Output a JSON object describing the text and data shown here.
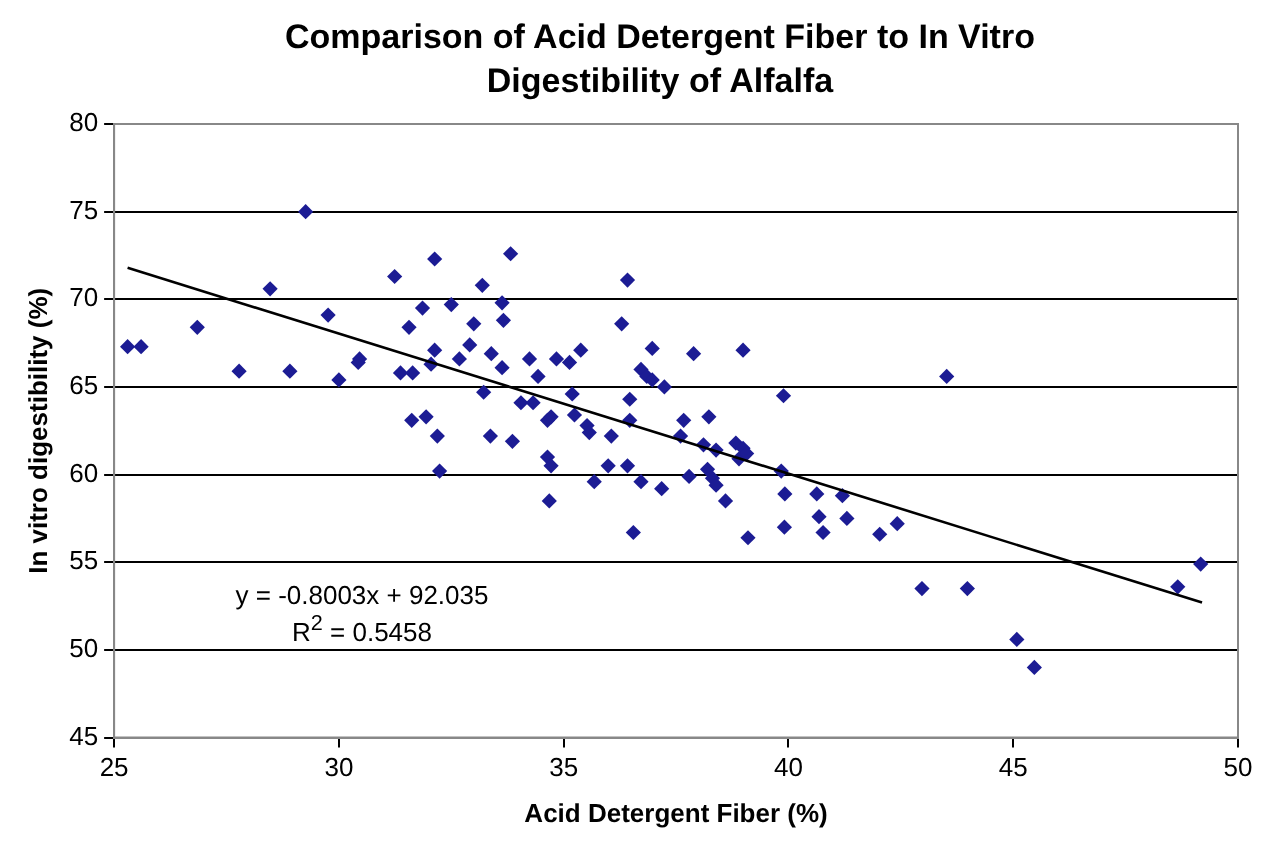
{
  "chart_data": {
    "type": "scatter",
    "title": "Comparison of Acid Detergent Fiber to In Vitro Digestibility of Alfalfa",
    "xlabel": "Acid Detergent Fiber (%)",
    "ylabel": "In vitro digestibility (%)",
    "annotations": [
      "y = -0.8003x + 92.035",
      "R$^{2}$ = 0.5458"
    ],
    "xlim": [
      25,
      50
    ],
    "xticks": [
      25,
      30,
      35,
      40,
      45,
      50
    ],
    "ylim": [
      45,
      80
    ],
    "yticks": [
      45,
      50,
      55,
      60,
      65,
      70,
      75,
      80
    ],
    "grid": "y",
    "legend": false,
    "marker": "diamond",
    "series": [
      {
        "type": "scatter",
        "color": "#1c1c94",
        "x": [
          25.3,
          25.6,
          26.85,
          27.78,
          28.47,
          28.91,
          29.26,
          29.76,
          30.0,
          30.43,
          30.46,
          31.24,
          31.37,
          31.64,
          31.56,
          31.62,
          31.94,
          31.86,
          32.13,
          32.13,
          32.05,
          32.19,
          32.24,
          32.5,
          32.68,
          32.91,
          33.0,
          33.19,
          33.22,
          33.39,
          33.37,
          33.63,
          33.66,
          33.82,
          33.63,
          33.86,
          34.05,
          34.24,
          34.32,
          34.43,
          34.64,
          34.72,
          34.64,
          34.72,
          34.68,
          34.84,
          35.13,
          35.38,
          35.19,
          35.24,
          35.52,
          35.57,
          35.68,
          35.99,
          36.06,
          36.29,
          36.42,
          36.42,
          36.47,
          36.47,
          36.55,
          36.72,
          36.85,
          36.97,
          36.72,
          36.97,
          37.18,
          37.24,
          37.67,
          37.6,
          37.79,
          37.89,
          38.23,
          38.11,
          38.2,
          38.31,
          38.39,
          38.39,
          38.6,
          38.83,
          38.9,
          38.99,
          39.07,
          38.99,
          39.1,
          39.89,
          39.84,
          39.92,
          39.91,
          40.63,
          40.68,
          40.77,
          41.2,
          41.3,
          42.03,
          42.42,
          42.97,
          43.52,
          43.98,
          45.08,
          45.47,
          48.66,
          49.17
        ],
        "values": [
          67.3,
          67.3,
          68.4,
          65.9,
          70.6,
          65.9,
          75.0,
          69.1,
          65.4,
          66.4,
          66.6,
          71.3,
          65.8,
          65.8,
          68.4,
          63.1,
          63.3,
          69.5,
          72.3,
          67.1,
          66.3,
          62.2,
          60.2,
          69.7,
          66.6,
          67.4,
          68.6,
          70.8,
          64.7,
          66.9,
          62.2,
          69.8,
          68.8,
          72.6,
          66.1,
          61.9,
          64.1,
          66.6,
          64.1,
          65.6,
          63.1,
          63.3,
          61.0,
          60.5,
          58.5,
          66.6,
          66.4,
          67.1,
          64.6,
          63.4,
          62.8,
          62.4,
          59.6,
          60.5,
          62.2,
          68.6,
          71.1,
          60.5,
          64.3,
          63.1,
          56.7,
          66.0,
          65.6,
          65.4,
          59.6,
          67.2,
          59.2,
          65.0,
          63.1,
          62.2,
          59.9,
          66.9,
          63.3,
          61.7,
          60.3,
          59.8,
          59.4,
          61.4,
          58.5,
          61.8,
          60.9,
          61.5,
          61.2,
          67.1,
          56.4,
          64.5,
          60.2,
          58.9,
          57.0,
          58.9,
          57.6,
          56.7,
          58.8,
          57.5,
          56.6,
          57.2,
          53.5,
          65.6,
          53.5,
          50.6,
          49.0,
          53.6,
          54.9
        ]
      },
      {
        "type": "line",
        "color": "#000000",
        "marker": "none",
        "x": [
          25.3,
          49.2
        ],
        "values": [
          71.8,
          52.7
        ]
      }
    ]
  }
}
